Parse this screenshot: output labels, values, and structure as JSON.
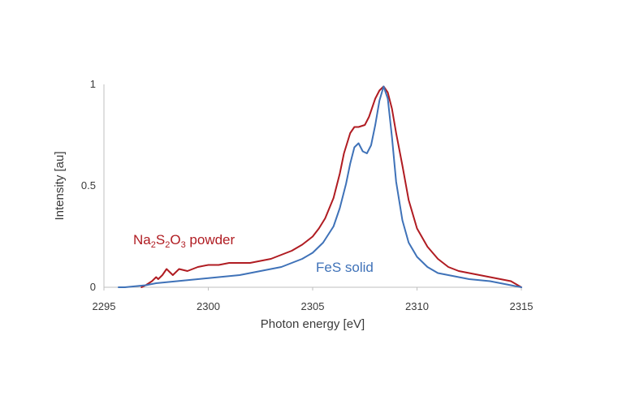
{
  "chart_data": {
    "type": "line",
    "title": "",
    "xlabel": "Photon energy [eV]",
    "ylabel": "Intensity [au]",
    "xlim": [
      2295,
      2315
    ],
    "ylim": [
      0,
      1
    ],
    "xticks": [
      2295,
      2300,
      2305,
      2310,
      2315
    ],
    "yticks": [
      0,
      0.5,
      1
    ],
    "xtick_labels": [
      "2295",
      "2300",
      "2305",
      "2310",
      "2315"
    ],
    "ytick_labels": [
      "0",
      "0.5",
      "1"
    ],
    "grid": false,
    "series": [
      {
        "name": "Na2S2O3 powder",
        "label_parts": {
          "a": "Na",
          "a_sub": "2",
          "b": "S",
          "b_sub": "2",
          "c": "O",
          "c_sub": "3",
          "suffix": " powder"
        },
        "color": "#b01c22",
        "x": [
          2296.8,
          2297.0,
          2297.3,
          2297.5,
          2297.6,
          2297.8,
          2298.0,
          2298.3,
          2298.6,
          2299.0,
          2299.5,
          2300.0,
          2300.5,
          2301.0,
          2301.5,
          2302.0,
          2302.5,
          2303.0,
          2303.5,
          2304.0,
          2304.5,
          2305.0,
          2305.3,
          2305.6,
          2306.0,
          2306.3,
          2306.5,
          2306.8,
          2307.0,
          2307.2,
          2307.5,
          2307.7,
          2307.9,
          2308.0,
          2308.2,
          2308.4,
          2308.6,
          2308.8,
          2309.0,
          2309.3,
          2309.6,
          2310.0,
          2310.5,
          2311.0,
          2311.5,
          2312.0,
          2312.5,
          2313.0,
          2313.5,
          2314.0,
          2314.5,
          2315.0
        ],
        "values": [
          0.0,
          0.01,
          0.03,
          0.05,
          0.04,
          0.06,
          0.09,
          0.06,
          0.09,
          0.08,
          0.1,
          0.11,
          0.11,
          0.12,
          0.12,
          0.12,
          0.13,
          0.14,
          0.16,
          0.18,
          0.21,
          0.25,
          0.29,
          0.34,
          0.44,
          0.56,
          0.66,
          0.76,
          0.79,
          0.79,
          0.8,
          0.84,
          0.9,
          0.93,
          0.97,
          0.99,
          0.96,
          0.88,
          0.76,
          0.6,
          0.43,
          0.29,
          0.2,
          0.14,
          0.1,
          0.08,
          0.07,
          0.06,
          0.05,
          0.04,
          0.03,
          0.0
        ]
      },
      {
        "name": "FeS solid",
        "color": "#3f72b8",
        "x": [
          2295.7,
          2296.0,
          2296.5,
          2297.0,
          2297.5,
          2298.0,
          2298.5,
          2299.0,
          2299.5,
          2300.0,
          2300.5,
          2301.0,
          2301.5,
          2302.0,
          2302.5,
          2303.0,
          2303.5,
          2304.0,
          2304.5,
          2305.0,
          2305.5,
          2306.0,
          2306.3,
          2306.6,
          2306.8,
          2307.0,
          2307.2,
          2307.4,
          2307.6,
          2307.8,
          2308.0,
          2308.2,
          2308.4,
          2308.6,
          2308.8,
          2309.0,
          2309.3,
          2309.6,
          2310.0,
          2310.5,
          2311.0,
          2311.5,
          2312.0,
          2312.5,
          2313.0,
          2313.5,
          2314.0,
          2314.5,
          2315.0
        ],
        "values": [
          0.0,
          0.0,
          0.005,
          0.01,
          0.02,
          0.025,
          0.03,
          0.035,
          0.04,
          0.045,
          0.05,
          0.055,
          0.06,
          0.07,
          0.08,
          0.09,
          0.1,
          0.12,
          0.14,
          0.17,
          0.22,
          0.3,
          0.39,
          0.51,
          0.61,
          0.69,
          0.71,
          0.67,
          0.66,
          0.7,
          0.8,
          0.92,
          0.99,
          0.93,
          0.74,
          0.52,
          0.33,
          0.22,
          0.15,
          0.1,
          0.07,
          0.06,
          0.05,
          0.04,
          0.035,
          0.03,
          0.02,
          0.01,
          0.0
        ]
      }
    ],
    "annotations": [
      {
        "series": 0,
        "anchor_x": 2296.2,
        "anchor_y": 0.24
      },
      {
        "series": 1,
        "anchor_x": 2306.3,
        "anchor_y": 0.09
      }
    ]
  }
}
